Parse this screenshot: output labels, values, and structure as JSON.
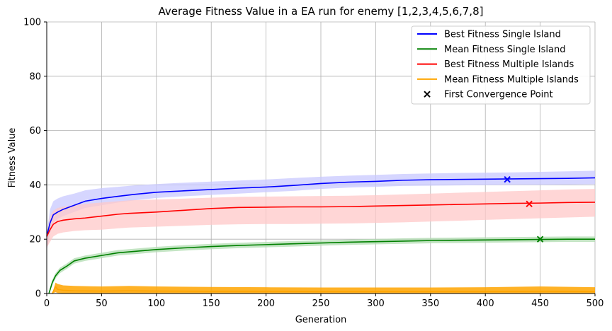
{
  "chart_data": {
    "type": "line",
    "title": "Average Fitness Value in a EA run for enemy [1,2,3,4,5,6,7,8]",
    "xlabel": "Generation",
    "ylabel": "Fitness Value",
    "xlim": [
      0,
      500
    ],
    "ylim": [
      0,
      100
    ],
    "xticks": [
      0,
      50,
      100,
      150,
      200,
      250,
      300,
      350,
      400,
      450,
      500
    ],
    "yticks": [
      0,
      20,
      40,
      60,
      80,
      100
    ],
    "xtick_labels": [
      "0",
      "50",
      "100",
      "150",
      "200",
      "250",
      "300",
      "350",
      "400",
      "450",
      "500"
    ],
    "ytick_labels": [
      "0",
      "20",
      "40",
      "60",
      "80",
      "100"
    ],
    "grid": true,
    "legend_position": "top-right",
    "series": [
      {
        "name": "Best Fitness Single Island",
        "color": "#0000ff",
        "band_color": "#c8c8ff",
        "x": [
          0,
          3,
          6,
          10,
          15,
          25,
          35,
          50,
          65,
          80,
          100,
          125,
          150,
          175,
          200,
          225,
          250,
          275,
          300,
          325,
          350,
          375,
          400,
          425,
          450,
          475,
          500
        ],
        "values": [
          21,
          26,
          29,
          30,
          31,
          32.5,
          34,
          35,
          35.8,
          36.5,
          37.3,
          37.8,
          38.3,
          38.8,
          39.2,
          39.8,
          40.5,
          41,
          41.3,
          41.7,
          41.9,
          42,
          42.1,
          42.2,
          42.3,
          42.4,
          42.6
        ],
        "lower": [
          16,
          22,
          26,
          27.5,
          28.5,
          30,
          31.5,
          32.5,
          33.5,
          34.3,
          35.2,
          35.8,
          36.3,
          36.8,
          37.3,
          37.8,
          38.5,
          39,
          39.3,
          39.6,
          39.7,
          39.8,
          39.9,
          40,
          40,
          40.1,
          40.2
        ],
        "upper": [
          22,
          31,
          34,
          35,
          35.8,
          36.8,
          38,
          38.8,
          39.3,
          39.8,
          40.3,
          40.8,
          41.2,
          41.6,
          42,
          42.5,
          43,
          43.4,
          43.7,
          44,
          44.2,
          44.4,
          44.5,
          44.6,
          44.8,
          45,
          45.2
        ]
      },
      {
        "name": "Mean Fitness Single Island",
        "color": "#008000",
        "band_color": "#b0dcb0",
        "x": [
          2,
          5,
          8,
          12,
          18,
          25,
          35,
          50,
          65,
          80,
          100,
          125,
          150,
          175,
          200,
          225,
          250,
          275,
          300,
          325,
          350,
          375,
          400,
          425,
          450,
          475,
          500
        ],
        "values": [
          0,
          4,
          6.5,
          8.5,
          10,
          12,
          13,
          14,
          15,
          15.5,
          16.2,
          16.8,
          17.3,
          17.7,
          18,
          18.3,
          18.6,
          18.9,
          19.1,
          19.3,
          19.5,
          19.6,
          19.7,
          19.8,
          19.9,
          20,
          20
        ],
        "lower": [
          0,
          3,
          5.5,
          7.5,
          9,
          11,
          12,
          13,
          14,
          14.5,
          15.2,
          15.8,
          16.3,
          16.7,
          17,
          17.3,
          17.6,
          17.9,
          18.1,
          18.3,
          18.5,
          18.6,
          18.7,
          18.8,
          18.9,
          19,
          19
        ],
        "upper": [
          0,
          5,
          7.5,
          9.5,
          11,
          13,
          14,
          15,
          16,
          16.5,
          17.2,
          17.8,
          18.3,
          18.7,
          19,
          19.3,
          19.6,
          19.9,
          20.1,
          20.3,
          20.5,
          20.6,
          20.7,
          20.8,
          20.9,
          21,
          21
        ]
      },
      {
        "name": "Best Fitness Multiple Islands",
        "color": "#ff0000",
        "band_color": "#ffc8c8",
        "x": [
          0,
          3,
          6,
          10,
          15,
          25,
          35,
          50,
          65,
          75,
          100,
          150,
          175,
          200,
          225,
          250,
          275,
          300,
          325,
          350,
          375,
          400,
          425,
          450,
          475,
          500
        ],
        "values": [
          21,
          23.5,
          25.5,
          26.5,
          27,
          27.5,
          27.8,
          28.5,
          29.2,
          29.5,
          30,
          31.3,
          31.7,
          31.8,
          31.9,
          31.9,
          32,
          32.2,
          32.4,
          32.6,
          32.8,
          33,
          33.2,
          33.3,
          33.5,
          33.6
        ],
        "lower": [
          17,
          19,
          21,
          22,
          22.5,
          23,
          23.3,
          23.5,
          24,
          24.3,
          24.6,
          25.3,
          25.5,
          25.6,
          25.6,
          25.7,
          25.8,
          26,
          26.2,
          26.5,
          26.8,
          27.1,
          27.4,
          27.7,
          28,
          28.3
        ],
        "upper": [
          21,
          28.5,
          30.5,
          31.5,
          32,
          32.5,
          33,
          33.5,
          34,
          34.3,
          34.6,
          35.3,
          35.6,
          35.7,
          35.8,
          35.9,
          36,
          36.2,
          36.5,
          36.8,
          37.1,
          37.4,
          37.7,
          38,
          38.3,
          38.5
        ]
      },
      {
        "name": "Mean Fitness Multiple Islands",
        "color": "#ffa500",
        "band_color": "#ffa500",
        "x": [
          5,
          8,
          10,
          15,
          25,
          50,
          75,
          100,
          150,
          200,
          250,
          300,
          350,
          400,
          450,
          500
        ],
        "values": [
          0,
          2.5,
          1.5,
          1.2,
          1,
          0.9,
          1,
          0.9,
          0.8,
          0.8,
          0.7,
          0.7,
          0.7,
          0.7,
          0.8,
          0.7
        ],
        "lower": [
          0,
          0.5,
          0.2,
          0.1,
          0.1,
          0.1,
          0.1,
          0.1,
          0.1,
          0.1,
          0.1,
          0.1,
          0.1,
          0.1,
          0.1,
          0.1
        ],
        "upper": [
          0,
          4,
          3.5,
          3,
          2.8,
          2.6,
          2.8,
          2.6,
          2.4,
          2.3,
          2.2,
          2.2,
          2.2,
          2.3,
          2.6,
          2.3
        ]
      }
    ],
    "convergence_points": {
      "name": "First Convergence Point",
      "color": "#000000",
      "points": [
        {
          "series": "Best Fitness Single Island",
          "x": 420,
          "y": 42,
          "color": "#0000ff"
        },
        {
          "series": "Best Fitness Multiple Islands",
          "x": 440,
          "y": 33,
          "color": "#ff0000"
        },
        {
          "series": "Mean Fitness Single Island",
          "x": 450,
          "y": 20,
          "color": "#008000"
        }
      ]
    }
  }
}
